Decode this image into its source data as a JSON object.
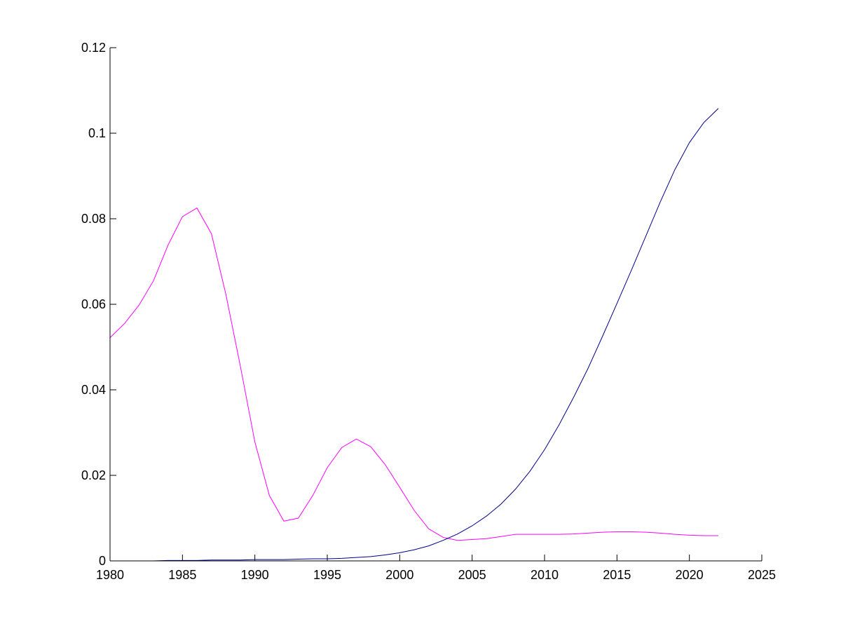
{
  "chart_data": {
    "type": "line",
    "title": "",
    "xlabel": "",
    "ylabel": "",
    "xlim": [
      1980,
      2025
    ],
    "ylim": [
      0,
      0.12
    ],
    "x_ticks": [
      1980,
      1985,
      1990,
      1995,
      2000,
      2005,
      2010,
      2015,
      2020,
      2025
    ],
    "x_tick_labels": [
      "1980",
      "1985",
      "1990",
      "1995",
      "2000",
      "2005",
      "2010",
      "2015",
      "2020",
      "2025"
    ],
    "y_ticks": [
      0,
      0.02,
      0.04,
      0.06,
      0.08,
      0.1,
      0.12
    ],
    "y_tick_labels": [
      "0",
      "0.02",
      "0.04",
      "0.06",
      "0.08",
      "0.1",
      "0.12"
    ],
    "grid": false,
    "legend": null,
    "x": [
      1980,
      1981,
      1982,
      1983,
      1984,
      1985,
      1986,
      1987,
      1988,
      1989,
      1990,
      1991,
      1992,
      1993,
      1994,
      1995,
      1996,
      1997,
      1998,
      1999,
      2000,
      2001,
      2002,
      2003,
      2004,
      2005,
      2006,
      2007,
      2008,
      2009,
      2010,
      2011,
      2012,
      2013,
      2014,
      2015,
      2016,
      2017,
      2018,
      2019,
      2020,
      2021,
      2022
    ],
    "series": [
      {
        "color": "#ff00ff",
        "values": [
          0.0522,
          0.0555,
          0.0598,
          0.0655,
          0.0738,
          0.0805,
          0.0825,
          0.0765,
          0.0623,
          0.0455,
          0.0278,
          0.0153,
          0.0093,
          0.01,
          0.0153,
          0.0218,
          0.0265,
          0.0285,
          0.0267,
          0.0225,
          0.0172,
          0.0118,
          0.0075,
          0.0055,
          0.0048,
          0.005,
          0.0052,
          0.0057,
          0.0062,
          0.0062,
          0.0062,
          0.0062,
          0.0063,
          0.0065,
          0.0067,
          0.0068,
          0.0068,
          0.0067,
          0.0065,
          0.0062,
          0.006,
          0.0059,
          0.0059
        ]
      },
      {
        "color": "#00008b",
        "values": [
          0.0,
          0.0,
          0.0,
          0.0,
          0.0001,
          0.0001,
          0.0001,
          0.0002,
          0.0002,
          0.0002,
          0.0003,
          0.0003,
          0.0003,
          0.0004,
          0.0005,
          0.0005,
          0.0006,
          0.0008,
          0.001,
          0.0014,
          0.0019,
          0.0026,
          0.0035,
          0.0048,
          0.0063,
          0.0082,
          0.0105,
          0.0133,
          0.0168,
          0.021,
          0.026,
          0.0318,
          0.0382,
          0.045,
          0.0525,
          0.0602,
          0.068,
          0.076,
          0.084,
          0.0915,
          0.0978,
          0.1025,
          0.1058
        ]
      }
    ]
  }
}
